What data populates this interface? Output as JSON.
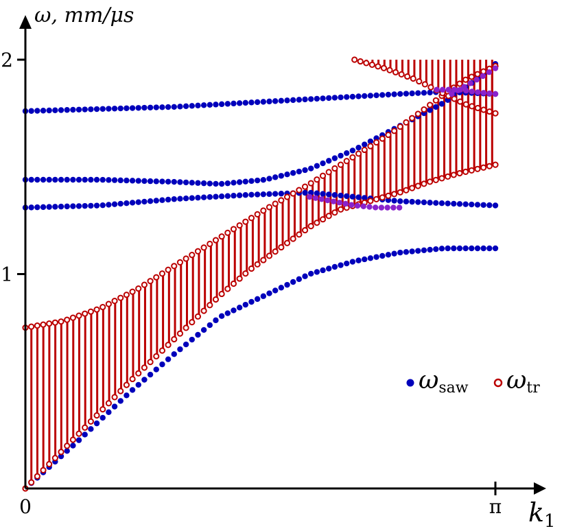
{
  "chart_data": {
    "type": "scatter",
    "title": "",
    "xlabel": "k",
    "xlabel_sub": "1",
    "ylabel": "ω, mm/μs",
    "xlim": [
      0,
      3.1416
    ],
    "ylim": [
      0,
      2.0
    ],
    "x_ticks": [
      {
        "value": 0,
        "label": "0"
      },
      {
        "value": 3.1416,
        "label": "π"
      }
    ],
    "y_ticks": [
      {
        "value": 1,
        "label": "1"
      },
      {
        "value": 2,
        "label": "2"
      }
    ],
    "grid": false,
    "legend_position": "bottom-right",
    "legend": [
      {
        "symbol": "filled-dot",
        "text": "ω",
        "sub": "saw",
        "color": "#0000bb"
      },
      {
        "symbol": "open-dot",
        "text": "ω",
        "sub": "tr",
        "color": "#bb0000"
      }
    ],
    "colors": {
      "saw": "#0000bb",
      "tr": "#bb0000",
      "overlap": "#8a22cc",
      "band": "#bb0000"
    },
    "series": [
      {
        "key": "saw_1",
        "marker": "filled",
        "color": "#0000bb",
        "points": [
          [
            0,
            0.0
          ],
          [
            0.35,
            0.22
          ],
          [
            0.7,
            0.45
          ],
          [
            1.0,
            0.63
          ],
          [
            1.3,
            0.8
          ],
          [
            1.6,
            0.9
          ],
          [
            1.9,
            1.0
          ],
          [
            2.2,
            1.06
          ],
          [
            2.5,
            1.1
          ],
          [
            2.8,
            1.12
          ],
          [
            3.1416,
            1.12
          ]
        ]
      },
      {
        "key": "saw_2",
        "marker": "filled",
        "color": "#0000bb",
        "points": [
          [
            0,
            1.31
          ],
          [
            0.5,
            1.32
          ],
          [
            1.0,
            1.35
          ],
          [
            1.5,
            1.37
          ],
          [
            1.9,
            1.38
          ],
          [
            2.2,
            1.36
          ],
          [
            2.5,
            1.34
          ],
          [
            2.8,
            1.33
          ],
          [
            3.1416,
            1.32
          ]
        ]
      },
      {
        "key": "saw_3",
        "marker": "filled",
        "color": "#0000bb",
        "points": [
          [
            0,
            1.44
          ],
          [
            0.5,
            1.44
          ],
          [
            1.0,
            1.43
          ],
          [
            1.3,
            1.42
          ],
          [
            1.6,
            1.44
          ],
          [
            1.9,
            1.49
          ],
          [
            2.2,
            1.58
          ],
          [
            2.5,
            1.69
          ],
          [
            2.8,
            1.8
          ],
          [
            3.0,
            1.9
          ],
          [
            3.1416,
            1.98
          ]
        ]
      },
      {
        "key": "saw_4",
        "marker": "filled",
        "color": "#0000bb",
        "points": [
          [
            0,
            1.76
          ],
          [
            0.5,
            1.77
          ],
          [
            1.0,
            1.78
          ],
          [
            1.5,
            1.8
          ],
          [
            2.0,
            1.82
          ],
          [
            2.5,
            1.84
          ],
          [
            2.8,
            1.85
          ],
          [
            3.1416,
            1.84
          ]
        ]
      },
      {
        "key": "tr_lower",
        "marker": "open",
        "color": "#bb0000",
        "points": [
          [
            0,
            0.0
          ],
          [
            0.35,
            0.25
          ],
          [
            0.7,
            0.5
          ],
          [
            1.0,
            0.7
          ],
          [
            1.3,
            0.9
          ],
          [
            1.5,
            1.02
          ],
          [
            1.7,
            1.12
          ],
          [
            1.9,
            1.22
          ],
          [
            2.1,
            1.3
          ],
          [
            2.3,
            1.34
          ],
          [
            2.5,
            1.38
          ],
          [
            2.7,
            1.43
          ],
          [
            2.9,
            1.47
          ],
          [
            3.1416,
            1.51
          ]
        ]
      },
      {
        "key": "tr_upper",
        "marker": "open",
        "color": "#bb0000",
        "points": [
          [
            0,
            0.75
          ],
          [
            0.25,
            0.78
          ],
          [
            0.5,
            0.84
          ],
          [
            0.75,
            0.93
          ],
          [
            1.0,
            1.04
          ],
          [
            1.3,
            1.17
          ],
          [
            1.6,
            1.3
          ],
          [
            1.9,
            1.42
          ],
          [
            2.2,
            1.55
          ],
          [
            2.45,
            1.66
          ],
          [
            2.65,
            1.76
          ],
          [
            2.8,
            1.84
          ],
          [
            2.95,
            1.91
          ],
          [
            3.1416,
            1.97
          ]
        ]
      },
      {
        "key": "tr_branch_down",
        "marker": "open",
        "color": "#bb0000",
        "points": [
          [
            2.2,
            2.0
          ],
          [
            2.4,
            1.96
          ],
          [
            2.6,
            1.91
          ],
          [
            2.8,
            1.84
          ],
          [
            2.95,
            1.79
          ],
          [
            3.1416,
            1.75
          ]
        ]
      },
      {
        "key": "overlap_1",
        "marker": "filled",
        "color": "#8a22cc",
        "points": [
          [
            1.9,
            1.36
          ],
          [
            2.05,
            1.34
          ],
          [
            2.2,
            1.32
          ],
          [
            2.35,
            1.31
          ],
          [
            2.5,
            1.31
          ]
        ]
      },
      {
        "key": "overlap_2",
        "marker": "filled",
        "color": "#8a22cc",
        "points": [
          [
            2.75,
            1.86
          ],
          [
            2.9,
            1.86
          ],
          [
            3.0,
            1.85
          ],
          [
            3.1416,
            1.84
          ]
        ]
      },
      {
        "key": "overlap_3",
        "marker": "filled",
        "color": "#8a22cc",
        "points": [
          [
            2.85,
            1.84
          ],
          [
            2.95,
            1.88
          ],
          [
            3.05,
            1.92
          ],
          [
            3.1416,
            1.96
          ]
        ]
      }
    ],
    "bands": [
      {
        "from": "tr_lower",
        "to": "tr_upper",
        "x_range": [
          0,
          3.1416
        ]
      },
      {
        "from": "tr_branch_down",
        "to": 2.0,
        "x_range": [
          2.2,
          3.1416
        ]
      }
    ]
  }
}
